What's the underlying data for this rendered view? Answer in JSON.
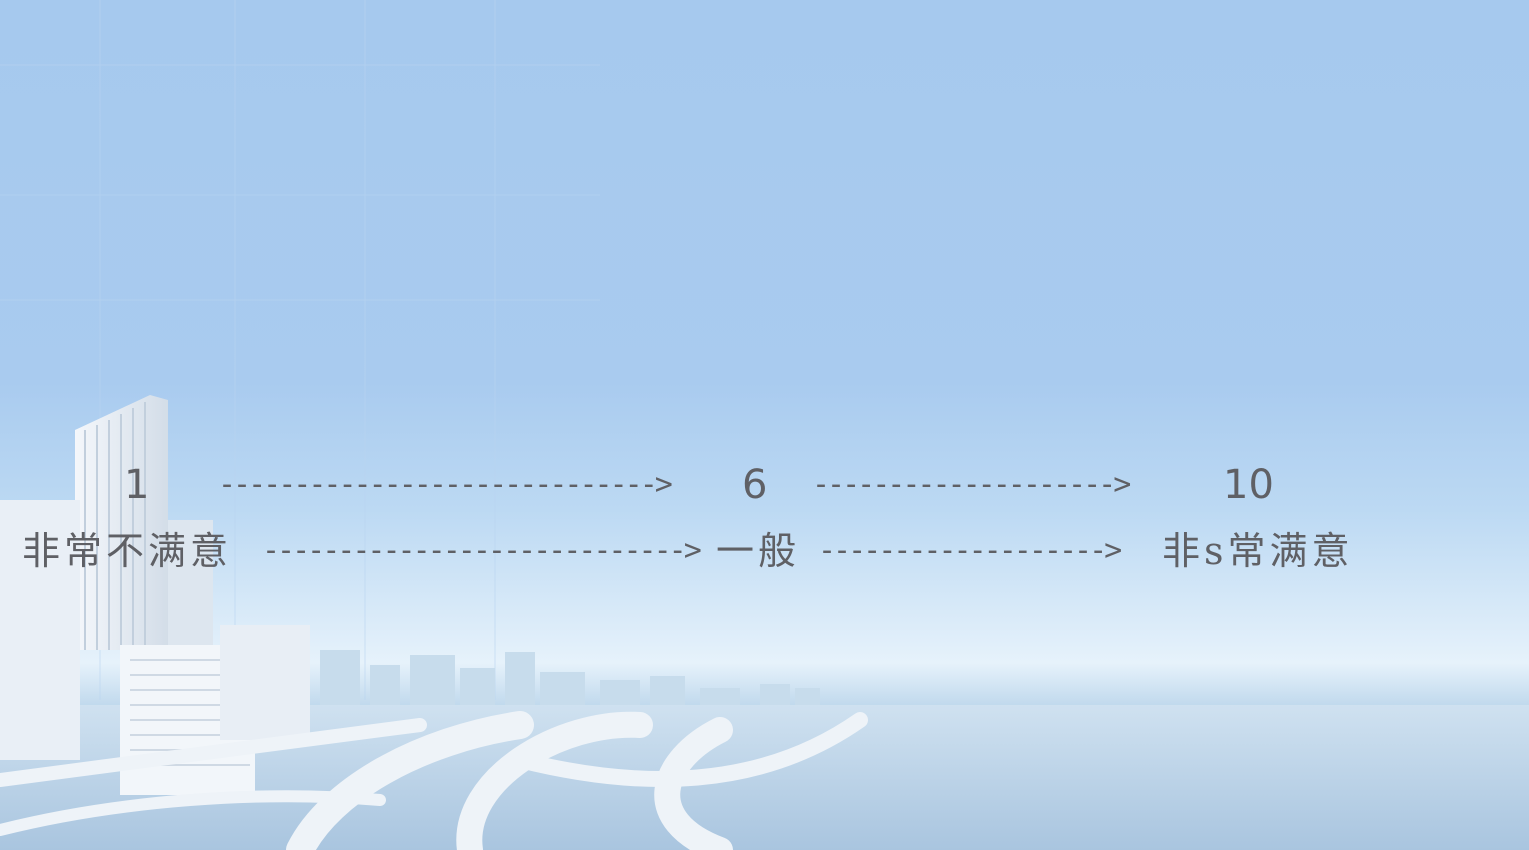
{
  "scale": {
    "numbers": {
      "low": "1",
      "arrow_1": "----------------------------->",
      "mid": "6",
      "arrow_2": "-------------------->",
      "high": "10"
    },
    "labels": {
      "low": "非常不满意",
      "arrow_1": "---------------------------->",
      "mid": "一般",
      "arrow_2": "------------------->",
      "high": "非s常满意"
    }
  },
  "colors": {
    "text": "#5f6065",
    "sky": "#a6c9ee",
    "horizon": "#e6f2fb"
  }
}
